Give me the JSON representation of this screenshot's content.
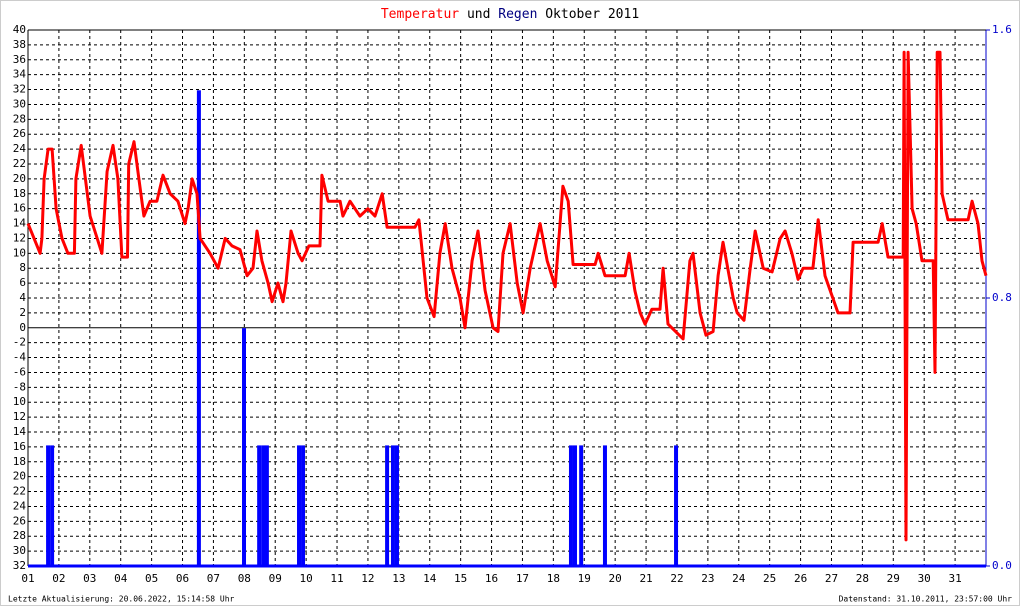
{
  "chart_data": {
    "type": "line_bar",
    "title_parts": {
      "connector": "und",
      "period": "Oktober 2011"
    },
    "footer_left": "Letzte Aktualisierung: 20.06.2022, 15:14:58 Uhr",
    "footer_right": "Datenstand: 31.10.2011, 23:57:00 Uhr",
    "xlim": [
      1,
      32
    ],
    "xticks": [
      {
        "value": 1,
        "label": "01"
      },
      {
        "value": 2,
        "label": "02"
      },
      {
        "value": 3,
        "label": "03"
      },
      {
        "value": 4,
        "label": "04"
      },
      {
        "value": 5,
        "label": "05"
      },
      {
        "value": 6,
        "label": "06"
      },
      {
        "value": 7,
        "label": "07"
      },
      {
        "value": 8,
        "label": "08"
      },
      {
        "value": 9,
        "label": "09"
      },
      10,
      11,
      12,
      13,
      14,
      15,
      16,
      17,
      18,
      19,
      20,
      21,
      22,
      23,
      24,
      25,
      26,
      27,
      28,
      29,
      30,
      31
    ],
    "ylim": [
      -32,
      40
    ],
    "yticks": [
      40,
      38,
      36,
      34,
      32,
      30,
      28,
      26,
      24,
      22,
      20,
      18,
      16,
      14,
      12,
      10,
      8,
      6,
      4,
      2,
      0,
      -2,
      -4,
      -6,
      -8,
      {
        "value": -10,
        "label": "10"
      },
      {
        "value": -12,
        "label": "12"
      },
      {
        "value": -14,
        "label": "14"
      },
      {
        "value": -16,
        "label": "16"
      },
      {
        "value": -18,
        "label": "18"
      },
      {
        "value": -20,
        "label": "20"
      },
      {
        "value": -22,
        "label": "22"
      },
      {
        "value": -24,
        "label": "24"
      },
      {
        "value": -26,
        "label": "26"
      },
      {
        "value": -28,
        "label": "28"
      },
      {
        "value": -30,
        "label": "30"
      },
      {
        "value": -32,
        "label": "32"
      }
    ],
    "y2lim": [
      0,
      1.6
    ],
    "y2ticks": [
      1.6,
      0.8,
      {
        "value": 0,
        "label": "0.0"
      }
    ],
    "grid": true,
    "series": [
      {
        "name": "Temperatur",
        "color": "#ff0000",
        "type": "line",
        "x": [
          1.0,
          1.39,
          1.45,
          1.52,
          1.65,
          1.78,
          1.91,
          2.1,
          2.29,
          2.5,
          2.55,
          2.72,
          3.01,
          3.39,
          3.56,
          3.75,
          3.91,
          4.04,
          4.22,
          4.26,
          4.43,
          4.59,
          4.75,
          4.95,
          5.17,
          5.37,
          5.6,
          5.85,
          6.08,
          6.18,
          6.31,
          6.47,
          6.57,
          6.89,
          7.15,
          7.38,
          7.6,
          7.86,
          8.09,
          8.28,
          8.41,
          8.57,
          8.77,
          8.9,
          9.09,
          9.25,
          9.35,
          9.51,
          9.74,
          9.87,
          10.09,
          10.45,
          10.51,
          10.71,
          11.1,
          11.19,
          11.42,
          11.74,
          12.0,
          12.23,
          12.46,
          12.62,
          13.52,
          13.65,
          13.91,
          14.14,
          14.33,
          14.5,
          14.72,
          14.98,
          15.14,
          15.37,
          15.56,
          15.79,
          16.05,
          16.21,
          16.37,
          16.6,
          16.83,
          17.02,
          17.25,
          17.57,
          17.8,
          18.06,
          18.31,
          18.48,
          18.64,
          19.35,
          19.45,
          19.67,
          20.32,
          20.45,
          20.64,
          20.81,
          20.97,
          21.19,
          21.45,
          21.55,
          21.71,
          22.2,
          22.42,
          22.52,
          22.75,
          22.94,
          23.17,
          23.33,
          23.49,
          23.82,
          23.95,
          24.17,
          24.37,
          24.53,
          24.79,
          25.08,
          25.34,
          25.5,
          25.72,
          25.92,
          26.08,
          26.4,
          26.57,
          26.79,
          27.21,
          27.6,
          27.7,
          28.51,
          28.64,
          28.83,
          29.32,
          29.35,
          29.41,
          29.48,
          29.61,
          29.74,
          29.93,
          30.29,
          30.35,
          30.42,
          30.51,
          30.58,
          30.77,
          31.42,
          31.55,
          31.74,
          31.87,
          32.0
        ],
        "values": [
          14,
          10,
          12,
          20,
          24,
          24,
          16,
          12,
          10,
          10,
          20,
          24.5,
          15,
          10,
          21,
          24.5,
          20,
          9.5,
          9.5,
          22,
          25,
          20,
          15,
          17,
          17,
          20.5,
          18,
          17,
          14,
          16,
          20,
          18,
          12,
          10,
          8,
          12,
          11,
          10.5,
          7,
          8,
          13,
          9,
          6,
          3.5,
          6,
          3.5,
          6,
          13,
          10,
          9,
          11,
          11,
          20.5,
          17,
          17,
          15,
          17,
          15,
          16,
          15,
          18,
          13.5,
          13.5,
          14.5,
          4,
          1.5,
          10,
          14,
          8,
          4,
          0,
          9,
          13,
          5,
          0,
          -0.5,
          10,
          14,
          6,
          2,
          8,
          14,
          9,
          5.5,
          19,
          17,
          8.5,
          8.5,
          10,
          7,
          7,
          10,
          5,
          2,
          0.5,
          2.5,
          2.5,
          8,
          0.5,
          -1.5,
          9,
          10,
          2,
          -1,
          -0.5,
          7,
          11.5,
          4,
          2,
          1,
          8,
          13,
          8,
          7.5,
          12,
          13,
          10,
          6.5,
          8,
          8,
          14.5,
          7,
          2,
          2,
          11.5,
          11.5,
          14,
          9.5,
          9.5,
          37,
          -28.5,
          37,
          16,
          14,
          9,
          9,
          -6,
          37,
          37,
          18,
          14.5,
          14.5,
          17,
          14,
          9,
          7
        ]
      },
      {
        "name": "Regen",
        "color": "#0000ff",
        "type": "bar",
        "axis": "y2",
        "x": [
          1.65,
          1.78,
          6.53,
          7.99,
          8.48,
          8.61,
          8.73,
          9.77,
          9.9,
          12.62,
          12.81,
          12.94,
          18.57,
          18.7,
          18.9,
          19.67,
          21.97
        ],
        "values": [
          0.36,
          0.36,
          1.42,
          0.71,
          0.36,
          0.36,
          0.36,
          0.36,
          0.36,
          0.36,
          0.36,
          0.36,
          0.36,
          0.36,
          0.36,
          0.36,
          0.36
        ]
      }
    ]
  }
}
